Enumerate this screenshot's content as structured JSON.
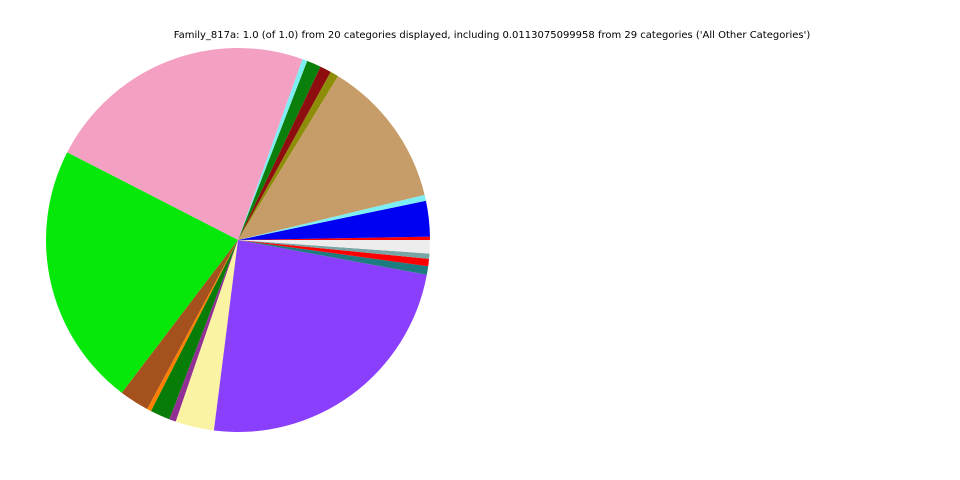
{
  "chart_data": {
    "type": "pie",
    "title": "Family_817a: 1.0 (of 1.0) from 20 categories displayed, including 0.0113075099958 from 29 categories ('All Other Categories')",
    "total": 1.0,
    "categories_displayed": 20,
    "all_other": {
      "label": "All Other Categories",
      "value": 0.0113075099958,
      "source_categories": 29
    },
    "start_angle_deg": 0,
    "direction": "counterclockwise",
    "legend": "none",
    "background_color": "#ffffff",
    "slices": [
      {
        "value": 0.0028,
        "color": "#ff0000"
      },
      {
        "value": 0.03,
        "color": "#0000f2"
      },
      {
        "value": 0.005,
        "color": "#7deef2"
      },
      {
        "value": 0.125,
        "color": "#c69d68"
      },
      {
        "value": 0.007,
        "color": "#8d8d07"
      },
      {
        "value": 0.0095,
        "color": "#8e0e10"
      },
      {
        "value": 0.012,
        "color": "#0b7f0b"
      },
      {
        "value": 0.0042,
        "color": "#7deef2"
      },
      {
        "value": 0.229,
        "color": "#f3a0c3"
      },
      {
        "value": 0.222,
        "color": "#05e80a"
      },
      {
        "value": 0.025,
        "color": "#a4511d"
      },
      {
        "value": 0.0036,
        "color": "#ff7f00"
      },
      {
        "value": 0.0167,
        "color": "#077c07"
      },
      {
        "value": 0.0056,
        "color": "#922f94"
      },
      {
        "value": 0.0325,
        "color": "#faf3a3"
      },
      {
        "value": 0.241,
        "color": "#8a3ffc"
      },
      {
        "value": 0.0072,
        "color": "#1d7c80"
      },
      {
        "value": 0.0061,
        "color": "#ff0000"
      },
      {
        "value": 0.0044,
        "color": "#7aa5a5"
      },
      {
        "value": 0.0113075099958,
        "color": "#ededed",
        "label": "All Other Categories"
      }
    ]
  }
}
